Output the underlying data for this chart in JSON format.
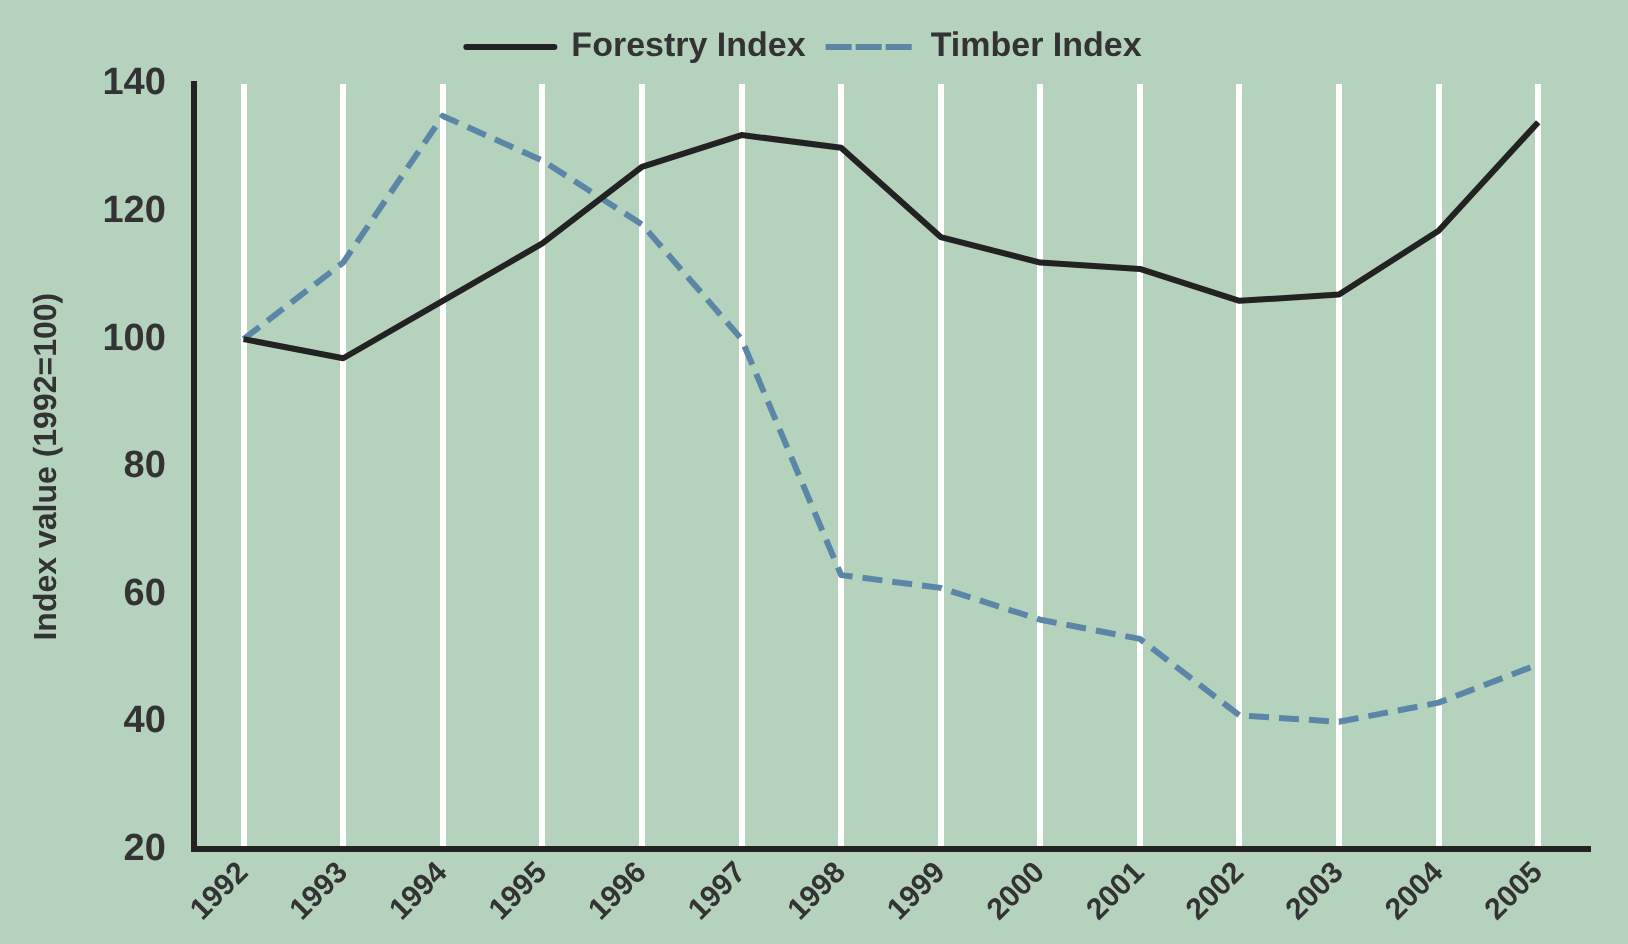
{
  "chart_data": {
    "type": "line",
    "ylabel": "Index value (1992=100)",
    "categories": [
      "1992",
      "1993",
      "1994",
      "1995",
      "1996",
      "1997",
      "1998",
      "1999",
      "2000",
      "2001",
      "2002",
      "2003",
      "2004",
      "2005"
    ],
    "series": [
      {
        "name": "Forestry Index",
        "color": "#222222",
        "line_style": "solid",
        "values": [
          100,
          97,
          106,
          115,
          127,
          132,
          130,
          116,
          112,
          111,
          106,
          107,
          117,
          134
        ]
      },
      {
        "name": "Timber Index",
        "color": "#5b86a8",
        "line_style": "dashed",
        "values": [
          100,
          112,
          135,
          128,
          118,
          100,
          63,
          61,
          56,
          53,
          41,
          40,
          43,
          49
        ]
      }
    ],
    "ylim": [
      20,
      140
    ],
    "yticks": [
      20,
      40,
      60,
      80,
      100,
      120,
      140
    ],
    "grid": "x",
    "legend": "top",
    "marker": "none"
  }
}
